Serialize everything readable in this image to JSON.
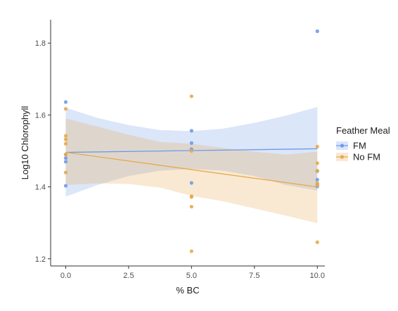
{
  "chart_data": {
    "type": "scatter",
    "xlabel": "% BC",
    "ylabel": "Log10 Chlorophyll",
    "xlim": [
      -0.6,
      10.3
    ],
    "ylim": [
      1.18,
      1.865
    ],
    "x_ticks": [
      "0.0",
      "2.5",
      "5.0",
      "7.5",
      "10.0"
    ],
    "y_ticks": [
      "1.2",
      "1.4",
      "1.6",
      "1.8"
    ],
    "grid": false,
    "legend_title": "Feather Meal",
    "legend_position": "right",
    "series": [
      {
        "name": "FM",
        "color": "#6f9be8",
        "points": [
          {
            "x": 0,
            "y": 1.636
          },
          {
            "x": 0,
            "y": 1.49
          },
          {
            "x": 0,
            "y": 1.48
          },
          {
            "x": 0,
            "y": 1.47
          },
          {
            "x": 0,
            "y": 1.403
          },
          {
            "x": 5,
            "y": 1.556
          },
          {
            "x": 5,
            "y": 1.522
          },
          {
            "x": 5,
            "y": 1.505
          },
          {
            "x": 5,
            "y": 1.411
          },
          {
            "x": 10,
            "y": 1.833
          },
          {
            "x": 10,
            "y": 1.444
          },
          {
            "x": 10,
            "y": 1.42
          },
          {
            "x": 10,
            "y": 1.407
          },
          {
            "x": 10,
            "y": 1.401
          }
        ],
        "trend": {
          "x": [
            0,
            10
          ],
          "y": [
            1.496,
            1.506
          ]
        },
        "ci": {
          "x": [
            0,
            1.25,
            2.5,
            3.75,
            5,
            6.25,
            7.5,
            8.75,
            10
          ],
          "lower": [
            1.373,
            1.405,
            1.43,
            1.445,
            1.45,
            1.445,
            1.43,
            1.405,
            1.39
          ],
          "upper": [
            1.62,
            1.592,
            1.572,
            1.558,
            1.555,
            1.562,
            1.578,
            1.598,
            1.622
          ]
        }
      },
      {
        "name": "No FM",
        "color": "#e8a84a",
        "points": [
          {
            "x": 0,
            "y": 1.617
          },
          {
            "x": 0,
            "y": 1.542
          },
          {
            "x": 0,
            "y": 1.532
          },
          {
            "x": 0,
            "y": 1.52
          },
          {
            "x": 0,
            "y": 1.49
          },
          {
            "x": 0,
            "y": 1.44
          },
          {
            "x": 5,
            "y": 1.652
          },
          {
            "x": 5,
            "y": 1.5
          },
          {
            "x": 5,
            "y": 1.374
          },
          {
            "x": 5,
            "y": 1.372
          },
          {
            "x": 5,
            "y": 1.345
          },
          {
            "x": 5,
            "y": 1.221
          },
          {
            "x": 10,
            "y": 1.512
          },
          {
            "x": 10,
            "y": 1.466
          },
          {
            "x": 10,
            "y": 1.445
          },
          {
            "x": 10,
            "y": 1.41
          },
          {
            "x": 10,
            "y": 1.404
          },
          {
            "x": 10,
            "y": 1.246
          }
        ],
        "trend": {
          "x": [
            0,
            10
          ],
          "y": [
            1.496,
            1.4
          ]
        },
        "ci": {
          "x": [
            0,
            1.25,
            2.5,
            3.75,
            5,
            6.25,
            7.5,
            8.75,
            10
          ],
          "lower": [
            1.405,
            1.41,
            1.408,
            1.398,
            1.375,
            1.36,
            1.34,
            1.32,
            1.299
          ],
          "upper": [
            1.59,
            1.568,
            1.545,
            1.525,
            1.52,
            1.508,
            1.498,
            1.49,
            1.498
          ]
        }
      }
    ]
  }
}
